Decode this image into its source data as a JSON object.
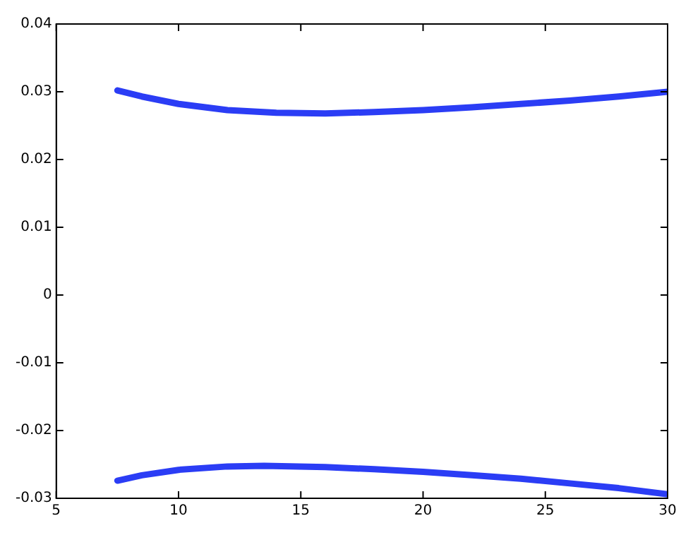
{
  "chart_data": {
    "type": "line",
    "xlim": [
      5,
      30
    ],
    "xticks": [
      5,
      10,
      15,
      20,
      25,
      30
    ],
    "ylim": [
      -0.03,
      0.04
    ],
    "yticks": [
      -0.03,
      -0.02,
      -0.01,
      0,
      0.01,
      0.02,
      0.03,
      0.04
    ],
    "grid": false,
    "legend": false,
    "marker": "none",
    "line_style": "solid",
    "series": [
      {
        "color": "#2b3df5",
        "x": [
          7.5,
          8.5,
          10,
          12,
          14,
          16,
          18,
          20,
          22,
          24,
          26,
          28,
          30
        ],
        "values": [
          0.0302,
          0.0293,
          0.0282,
          0.0273,
          0.0269,
          0.0268,
          0.027,
          0.0273,
          0.0277,
          0.0282,
          0.0287,
          0.0293,
          0.03
        ]
      },
      {
        "color": "#2b3df5",
        "x": [
          7.5,
          8.5,
          10,
          12,
          13.5,
          16,
          18,
          20,
          22,
          24,
          26,
          28,
          30
        ],
        "values": [
          -0.0274,
          -0.0266,
          -0.0258,
          -0.0253,
          -0.0252,
          -0.0254,
          -0.0257,
          -0.0261,
          -0.0266,
          -0.0271,
          -0.0278,
          -0.0285,
          -0.0294
        ]
      }
    ]
  }
}
